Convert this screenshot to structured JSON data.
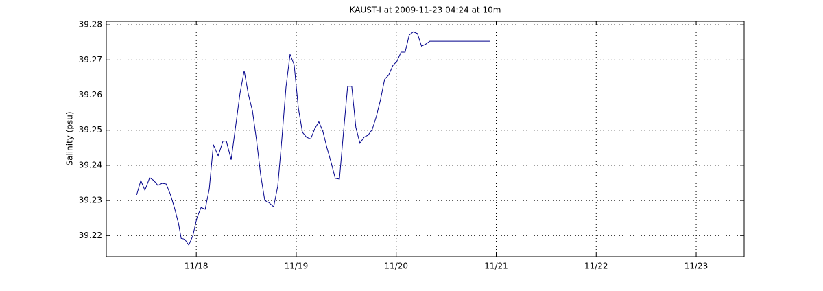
{
  "chart_data": {
    "type": "line",
    "title": "KAUST-I at 2009-11-23 04:24 at 10m",
    "y_label": "Salinity (psu)",
    "x": [
      17.404,
      17.445,
      17.486,
      17.534,
      17.575,
      17.616,
      17.658,
      17.699,
      17.74,
      17.781,
      17.822,
      17.849,
      17.884,
      17.925,
      17.966,
      18.007,
      18.048,
      18.089,
      18.13,
      18.171,
      18.219,
      18.267,
      18.301,
      18.349,
      18.397,
      18.438,
      18.479,
      18.521,
      18.562,
      18.603,
      18.644,
      18.685,
      18.726,
      18.774,
      18.815,
      18.856,
      18.897,
      18.938,
      18.979,
      19.021,
      19.062,
      19.103,
      19.144,
      19.185,
      19.226,
      19.267,
      19.308,
      19.349,
      19.39,
      19.432,
      19.473,
      19.514,
      19.555,
      19.596,
      19.637,
      19.678,
      19.719,
      19.76,
      19.801,
      19.842,
      19.884,
      19.925,
      19.966,
      20.007,
      20.048,
      20.089,
      20.13,
      20.171,
      20.212,
      20.253,
      20.295,
      20.336,
      20.377,
      20.938
    ],
    "series": [
      {
        "color": "#00008b",
        "values": [
          39.2316,
          39.2357,
          39.2329,
          39.2365,
          39.2357,
          39.2343,
          39.2349,
          39.2347,
          39.2318,
          39.228,
          39.2235,
          39.2192,
          39.219,
          39.2173,
          39.22,
          39.2251,
          39.228,
          39.2275,
          39.2333,
          39.2459,
          39.2427,
          39.2469,
          39.2469,
          39.2416,
          39.2518,
          39.2606,
          39.2669,
          39.2602,
          39.2555,
          39.2471,
          39.2373,
          39.23,
          39.2294,
          39.2282,
          39.2341,
          39.2475,
          39.2622,
          39.2716,
          39.2686,
          39.2563,
          39.2494,
          39.248,
          39.2475,
          39.2504,
          39.2524,
          39.2496,
          39.2449,
          39.2408,
          39.2363,
          39.2361,
          39.2496,
          39.2625,
          39.2625,
          39.2508,
          39.2463,
          39.248,
          39.2486,
          39.2502,
          39.2539,
          39.2586,
          39.2645,
          39.2657,
          39.2684,
          39.2696,
          39.2722,
          39.2722,
          39.2771,
          39.278,
          39.2775,
          39.2739,
          39.2745,
          39.2753,
          39.2753,
          39.2753
        ]
      }
    ],
    "xlim": [
      17.1,
      23.48
    ],
    "ylim": [
      39.214,
      39.281
    ],
    "xticks": [
      {
        "value": 18,
        "label": "11/18"
      },
      {
        "value": 19,
        "label": "11/19"
      },
      {
        "value": 20,
        "label": "11/20"
      },
      {
        "value": 21,
        "label": "11/21"
      },
      {
        "value": 22,
        "label": "11/22"
      },
      {
        "value": 23,
        "label": "11/23"
      }
    ],
    "yticks": [
      39.22,
      39.23,
      39.24,
      39.25,
      39.26,
      39.27,
      39.28
    ],
    "grid": true
  }
}
